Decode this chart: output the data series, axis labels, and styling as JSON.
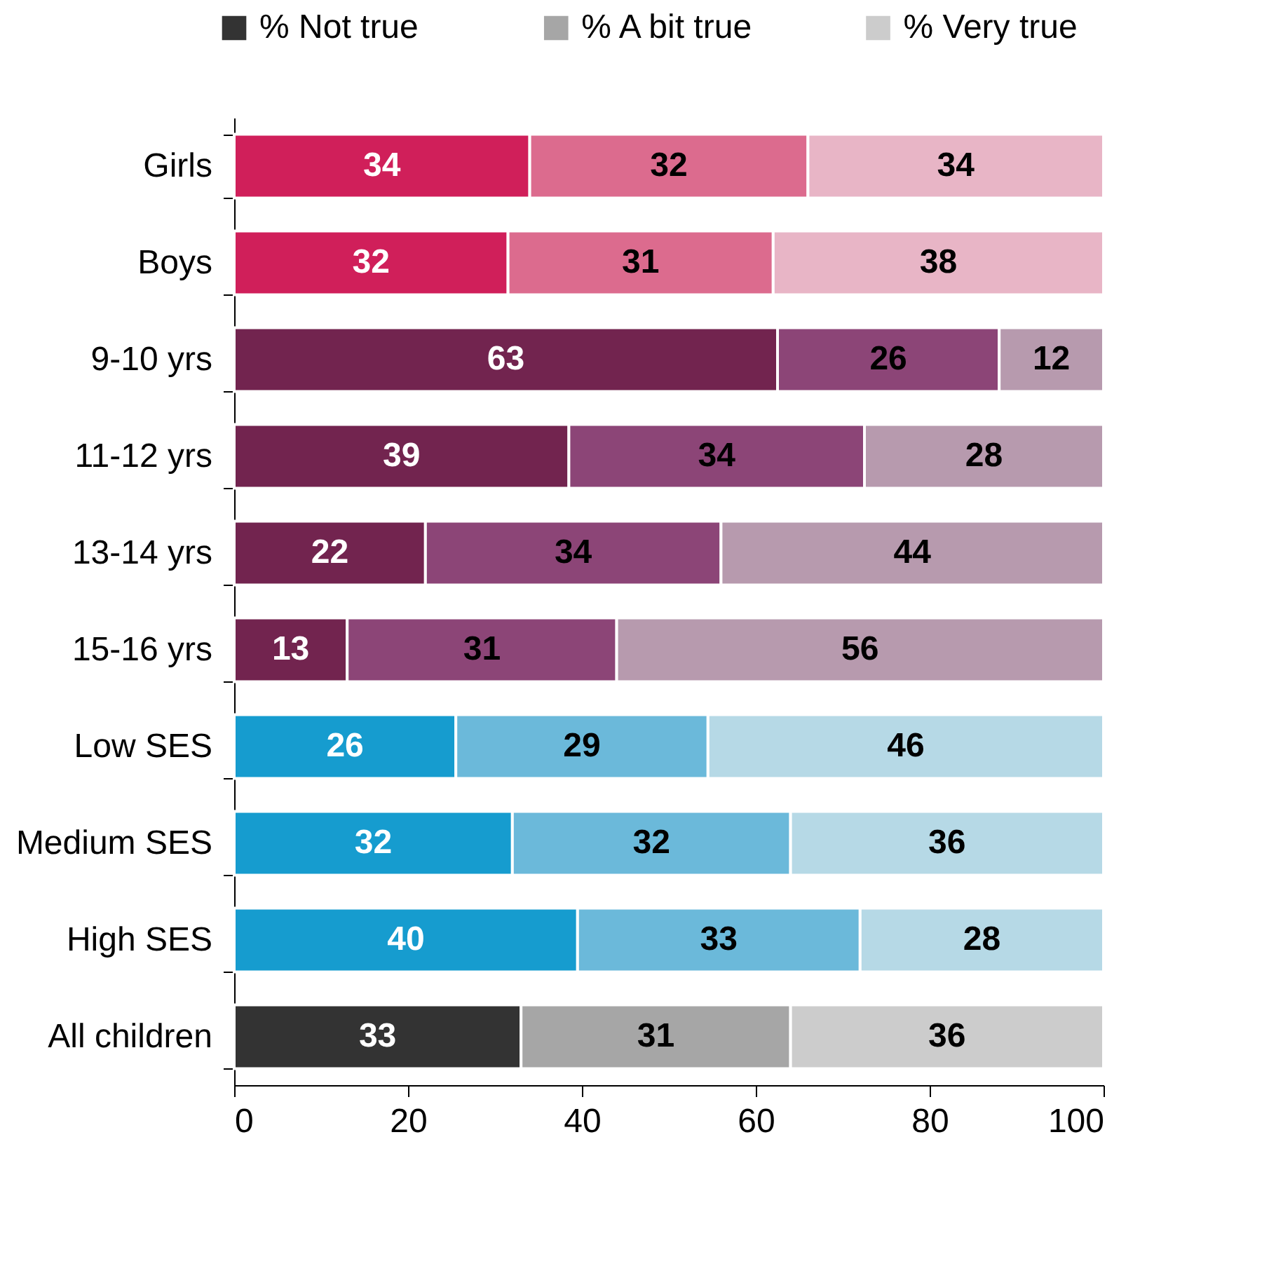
{
  "chart_data": {
    "type": "bar",
    "orientation": "horizontal",
    "stacked": true,
    "legend": "top",
    "categories": [
      "Girls",
      "Boys",
      "9-10 yrs",
      "11-12 yrs",
      "13-14 yrs",
      "15-16 yrs",
      "Low  SES",
      "Medium SES",
      "High SES",
      "All children"
    ],
    "series": [
      {
        "name": "% Not true",
        "color": "#333333",
        "colors": [
          "#d01f5a",
          "#d01f5a",
          "#72244f",
          "#72244f",
          "#72244f",
          "#72244f",
          "#169ccf",
          "#169ccf",
          "#169ccf",
          "#333333"
        ],
        "values": [
          34,
          31.5,
          62.5,
          38.5,
          22,
          13,
          25.5,
          32,
          39.5,
          33
        ],
        "value_labels": [
          "34",
          "32",
          "63",
          "39",
          "22",
          "13",
          "26",
          "32",
          "40",
          "33"
        ]
      },
      {
        "name": "% A bit true",
        "color": "#a6a6a6",
        "colors": [
          "#dc6b8e",
          "#dc6b8e",
          "#8c4577",
          "#8c4577",
          "#8c4577",
          "#8c4577",
          "#6bb9da",
          "#6bb9da",
          "#6bb9da",
          "#a6a6a6"
        ],
        "values": [
          32,
          30.5,
          25.5,
          34,
          34,
          31,
          29,
          32,
          32.5,
          31
        ],
        "value_labels": [
          "32",
          "31",
          "26",
          "34",
          "34",
          "31",
          "29",
          "32",
          "33",
          "31"
        ]
      },
      {
        "name": "% Very true",
        "color": "#cccccc",
        "colors": [
          "#e8b5c6",
          "#e8b5c6",
          "#b79aae",
          "#b79aae",
          "#b79aae",
          "#b79aae",
          "#b6d9e6",
          "#b6d9e6",
          "#b6d9e6",
          "#cccccc"
        ],
        "values": [
          34,
          38,
          12,
          27.5,
          44,
          56,
          45.5,
          36,
          28,
          36
        ],
        "value_labels": [
          "34",
          "38",
          "12",
          "28",
          "44",
          "56",
          "46",
          "36",
          "28",
          "36"
        ]
      }
    ],
    "xlim": [
      0,
      100
    ],
    "xticks": [
      0,
      20,
      40,
      60,
      80,
      100
    ]
  }
}
